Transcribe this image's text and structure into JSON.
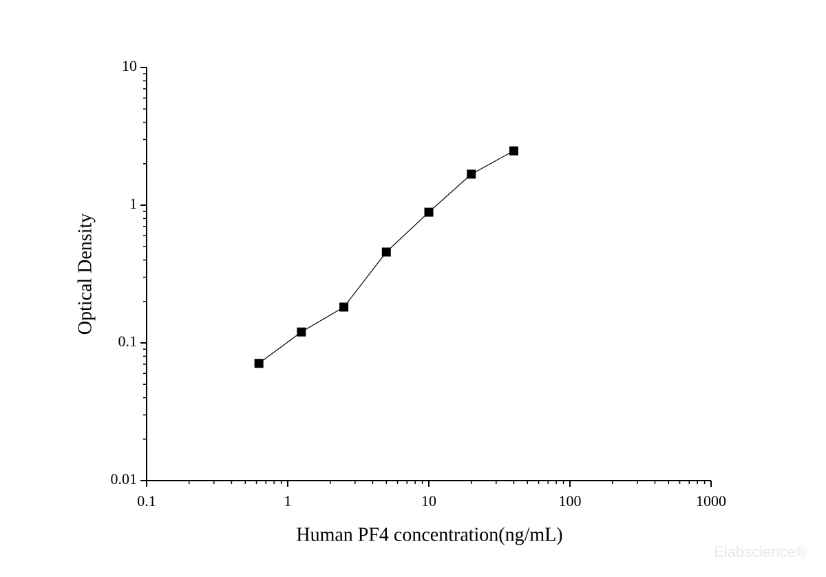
{
  "chart_data": {
    "type": "scatter-line",
    "x_label": "Human PF4 concentration(ng/mL)",
    "y_label": "Optical Density",
    "x": [
      0.625,
      1.25,
      2.5,
      5,
      10,
      20,
      40
    ],
    "series": [
      {
        "values": [
          0.071,
          0.12,
          0.182,
          0.457,
          0.89,
          1.68,
          2.48
        ],
        "color": "#000000"
      }
    ],
    "xlim": [
      0.1,
      1000
    ],
    "xticks": [
      0.1,
      1,
      10,
      100,
      1000
    ],
    "ylim": [
      0.01,
      10
    ],
    "yticks": [
      0.01,
      0.1,
      1,
      10
    ],
    "x_log": true,
    "y_log": true,
    "minor_ticks": true,
    "watermark": "Elabscience®"
  }
}
